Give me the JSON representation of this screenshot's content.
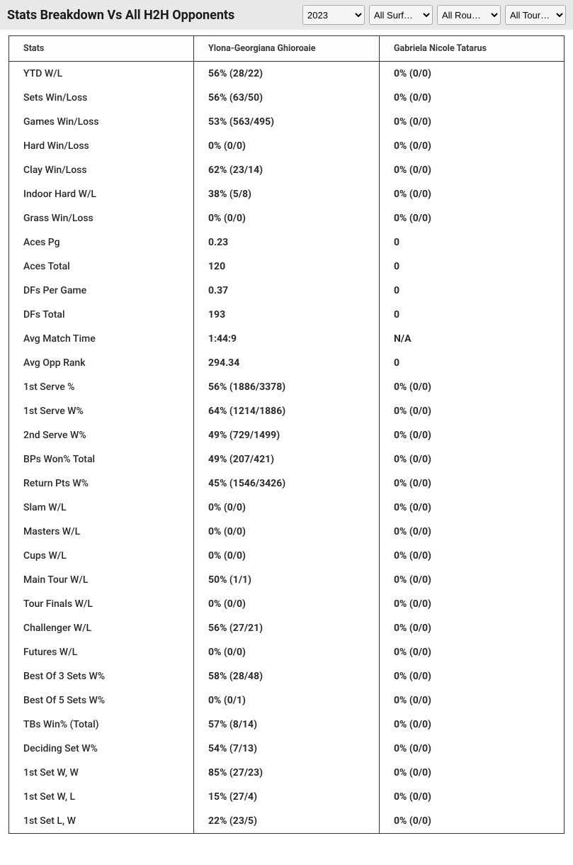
{
  "title": "Stats Breakdown Vs All H2H Opponents",
  "filters": {
    "year": {
      "options": [
        "2023"
      ],
      "selected": "2023"
    },
    "surface": {
      "options": [
        "All Surf…"
      ],
      "selected": "All Surf…"
    },
    "round": {
      "options": [
        "All Rou…"
      ],
      "selected": "All Rou…"
    },
    "tournament": {
      "options": [
        "All Tour…"
      ],
      "selected": "All Tour…"
    }
  },
  "columns": {
    "stats": "Stats",
    "player1": "Ylona-Georgiana Ghioroaie",
    "player2": "Gabriela Nicole Tatarus"
  },
  "rows": [
    {
      "label": "YTD W/L",
      "p1": "56% (28/22)",
      "p2": "0% (0/0)"
    },
    {
      "label": "Sets Win/Loss",
      "p1": "56% (63/50)",
      "p2": "0% (0/0)"
    },
    {
      "label": "Games Win/Loss",
      "p1": "53% (563/495)",
      "p2": "0% (0/0)"
    },
    {
      "label": "Hard Win/Loss",
      "p1": "0% (0/0)",
      "p2": "0% (0/0)"
    },
    {
      "label": "Clay Win/Loss",
      "p1": "62% (23/14)",
      "p2": "0% (0/0)"
    },
    {
      "label": "Indoor Hard W/L",
      "p1": "38% (5/8)",
      "p2": "0% (0/0)"
    },
    {
      "label": "Grass Win/Loss",
      "p1": "0% (0/0)",
      "p2": "0% (0/0)"
    },
    {
      "label": "Aces Pg",
      "p1": "0.23",
      "p2": "0"
    },
    {
      "label": "Aces Total",
      "p1": "120",
      "p2": "0"
    },
    {
      "label": "DFs Per Game",
      "p1": "0.37",
      "p2": "0"
    },
    {
      "label": "DFs Total",
      "p1": "193",
      "p2": "0"
    },
    {
      "label": "Avg Match Time",
      "p1": "1:44:9",
      "p2": "N/A"
    },
    {
      "label": "Avg Opp Rank",
      "p1": "294.34",
      "p2": "0"
    },
    {
      "label": "1st Serve %",
      "p1": "56% (1886/3378)",
      "p2": "0% (0/0)"
    },
    {
      "label": "1st Serve W%",
      "p1": "64% (1214/1886)",
      "p2": "0% (0/0)"
    },
    {
      "label": "2nd Serve W%",
      "p1": "49% (729/1499)",
      "p2": "0% (0/0)"
    },
    {
      "label": "BPs Won% Total",
      "p1": "49% (207/421)",
      "p2": "0% (0/0)"
    },
    {
      "label": "Return Pts W%",
      "p1": "45% (1546/3426)",
      "p2": "0% (0/0)"
    },
    {
      "label": "Slam W/L",
      "p1": "0% (0/0)",
      "p2": "0% (0/0)"
    },
    {
      "label": "Masters W/L",
      "p1": "0% (0/0)",
      "p2": "0% (0/0)"
    },
    {
      "label": "Cups W/L",
      "p1": "0% (0/0)",
      "p2": "0% (0/0)"
    },
    {
      "label": "Main Tour W/L",
      "p1": "50% (1/1)",
      "p2": "0% (0/0)"
    },
    {
      "label": "Tour Finals W/L",
      "p1": "0% (0/0)",
      "p2": "0% (0/0)"
    },
    {
      "label": "Challenger W/L",
      "p1": "56% (27/21)",
      "p2": "0% (0/0)"
    },
    {
      "label": "Futures W/L",
      "p1": "0% (0/0)",
      "p2": "0% (0/0)"
    },
    {
      "label": "Best Of 3 Sets W%",
      "p1": "58% (28/48)",
      "p2": "0% (0/0)"
    },
    {
      "label": "Best Of 5 Sets W%",
      "p1": "0% (0/1)",
      "p2": "0% (0/0)"
    },
    {
      "label": "TBs Win% (Total)",
      "p1": "57% (8/14)",
      "p2": "0% (0/0)"
    },
    {
      "label": "Deciding Set W%",
      "p1": "54% (7/13)",
      "p2": "0% (0/0)"
    },
    {
      "label": "1st Set W, W",
      "p1": "85% (27/23)",
      "p2": "0% (0/0)"
    },
    {
      "label": "1st Set W, L",
      "p1": "15% (27/4)",
      "p2": "0% (0/0)"
    },
    {
      "label": "1st Set L, W",
      "p1": "22% (23/5)",
      "p2": "0% (0/0)"
    }
  ]
}
